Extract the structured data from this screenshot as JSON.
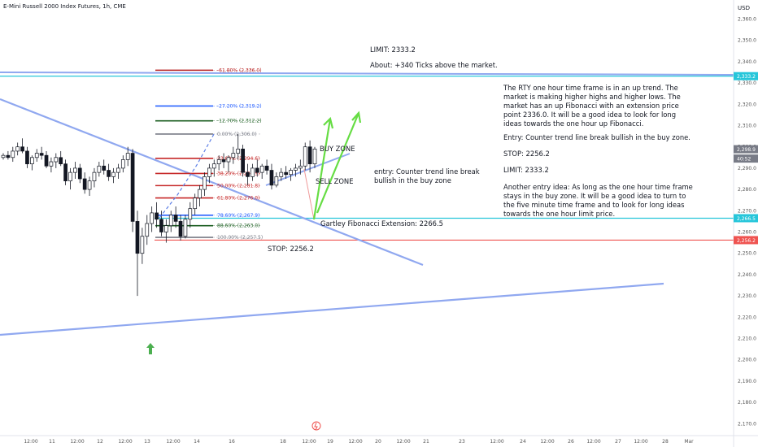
{
  "header": {
    "title": "E-Mini Russell 2000 Index Futures, 1h, CME",
    "currency": "USD"
  },
  "chart_data": {
    "type": "candlestick",
    "title": "E-Mini Russell 2000 Index Futures, 1h, CME",
    "ylim": [
      2165,
      2366
    ],
    "y_ticks": [
      "2,360.0",
      "2,350.0",
      "2,340.0",
      "2,330.0",
      "2,320.0",
      "2,310.0",
      "2,300.0",
      "2,290.0",
      "2,280.0",
      "2,270.0",
      "2,260.0",
      "2,250.0",
      "2,240.0",
      "2,230.0",
      "2,220.0",
      "2,210.0",
      "2,200.0",
      "2,190.0",
      "2,180.0",
      "2,170.0"
    ],
    "x_ticks": [
      "12:00",
      "11",
      "12:00",
      "12",
      "12:00",
      "13",
      "12:00",
      "14",
      "16",
      "18",
      "12:00",
      "19",
      "12:00",
      "20",
      "12:00",
      "21",
      "23",
      "12:00",
      "24",
      "12:00",
      "26",
      "12:00",
      "27",
      "12:00",
      "28",
      "Mar"
    ],
    "price_tags": [
      {
        "text": "2,333.2",
        "value": 2333.2,
        "color": "#26c6da"
      },
      {
        "text": "2,298.9",
        "value": 2298.9,
        "color": "#787b86"
      },
      {
        "text": "40:52",
        "value": 2294.5,
        "color": "#787b86"
      },
      {
        "text": "2,266.5",
        "value": 2266.5,
        "color": "#26c6da"
      },
      {
        "text": "2,256.2",
        "value": 2256.2,
        "color": "#ef5350"
      }
    ],
    "fib_levels": [
      {
        "label": "-61.80% (2,336.0)",
        "value": 2336.0,
        "color": "#b71c1c"
      },
      {
        "label": "-27.20% (2,319.2)",
        "value": 2319.2,
        "color": "#2962ff"
      },
      {
        "label": "-12.70% (2,312.2)",
        "value": 2312.2,
        "color": "#1b5e20"
      },
      {
        "label": "0.00% (2,306.0)",
        "value": 2306.0,
        "color": "#787b86"
      },
      {
        "label": "23.60% (2,294.6)",
        "value": 2294.6,
        "color": "#c62828"
      },
      {
        "label": "38.20% (2,287.5)",
        "value": 2287.5,
        "color": "#c62828"
      },
      {
        "label": "50.00% (2,281.8)",
        "value": 2281.8,
        "color": "#c62828"
      },
      {
        "label": "61.80% (2,276.0)",
        "value": 2276.0,
        "color": "#c62828"
      },
      {
        "label": "78.60% (2,267.9)",
        "value": 2267.9,
        "color": "#2962ff"
      },
      {
        "label": "88.60% (2,263.0)",
        "value": 2263.0,
        "color": "#1b5e20"
      },
      {
        "label": "100.00% (2,257.5)",
        "value": 2257.5,
        "color": "#787b86"
      }
    ],
    "horizontal_lines": [
      {
        "value": 2333.2,
        "color": "#26c6da"
      },
      {
        "value": 2266.5,
        "color": "#26c6da"
      },
      {
        "value": 2256.2,
        "color": "#ef5350"
      }
    ],
    "candles": [
      [
        2295,
        2297,
        2294,
        2296
      ],
      [
        2296,
        2298,
        2294,
        2295
      ],
      [
        2295,
        2300,
        2293,
        2298
      ],
      [
        2298,
        2302,
        2296,
        2300
      ],
      [
        2300,
        2304,
        2297,
        2298
      ],
      [
        2298,
        2300,
        2290,
        2292
      ],
      [
        2292,
        2296,
        2289,
        2295
      ],
      [
        2295,
        2299,
        2293,
        2297
      ],
      [
        2297,
        2300,
        2294,
        2296
      ],
      [
        2296,
        2298,
        2290,
        2291
      ],
      [
        2291,
        2295,
        2288,
        2293
      ],
      [
        2293,
        2297,
        2290,
        2295
      ],
      [
        2295,
        2298,
        2291,
        2292
      ],
      [
        2292,
        2294,
        2282,
        2284
      ],
      [
        2284,
        2290,
        2280,
        2288
      ],
      [
        2288,
        2293,
        2285,
        2290
      ],
      [
        2290,
        2292,
        2283,
        2285
      ],
      [
        2285,
        2288,
        2278,
        2280
      ],
      [
        2280,
        2286,
        2277,
        2284
      ],
      [
        2284,
        2290,
        2281,
        2288
      ],
      [
        2288,
        2293,
        2286,
        2291
      ],
      [
        2291,
        2294,
        2287,
        2289
      ],
      [
        2289,
        2292,
        2284,
        2286
      ],
      [
        2286,
        2290,
        2283,
        2288
      ],
      [
        2288,
        2292,
        2285,
        2290
      ],
      [
        2290,
        2296,
        2288,
        2294
      ],
      [
        2294,
        2300,
        2291,
        2297
      ],
      [
        2297,
        2299,
        2260,
        2265
      ],
      [
        2265,
        2270,
        2230,
        2250
      ],
      [
        2250,
        2262,
        2245,
        2258
      ],
      [
        2258,
        2268,
        2254,
        2264
      ],
      [
        2264,
        2272,
        2260,
        2269
      ],
      [
        2269,
        2274,
        2262,
        2266
      ],
      [
        2266,
        2270,
        2258,
        2260
      ],
      [
        2260,
        2266,
        2255,
        2263
      ],
      [
        2263,
        2270,
        2260,
        2268
      ],
      [
        2268,
        2272,
        2262,
        2265
      ],
      [
        2265,
        2268,
        2256,
        2258
      ],
      [
        2258,
        2268,
        2257,
        2266
      ],
      [
        2266,
        2274,
        2262,
        2271
      ],
      [
        2271,
        2278,
        2268,
        2276
      ],
      [
        2276,
        2282,
        2272,
        2280
      ],
      [
        2280,
        2288,
        2277,
        2286
      ],
      [
        2286,
        2292,
        2283,
        2290
      ],
      [
        2290,
        2294,
        2286,
        2292
      ],
      [
        2292,
        2296,
        2289,
        2294
      ],
      [
        2294,
        2297,
        2290,
        2293
      ],
      [
        2293,
        2296,
        2288,
        2295
      ],
      [
        2295,
        2300,
        2292,
        2297
      ],
      [
        2297,
        2306,
        2294,
        2299
      ],
      [
        2299,
        2301,
        2286,
        2288
      ],
      [
        2288,
        2292,
        2282,
        2286
      ],
      [
        2286,
        2292,
        2284,
        2290
      ],
      [
        2290,
        2294,
        2286,
        2288
      ],
      [
        2288,
        2292,
        2285,
        2291
      ],
      [
        2291,
        2294,
        2287,
        2289
      ],
      [
        2289,
        2292,
        2280,
        2282
      ],
      [
        2282,
        2288,
        2281,
        2286
      ],
      [
        2286,
        2290,
        2284,
        2288
      ],
      [
        2288,
        2291,
        2285,
        2287
      ],
      [
        2287,
        2290,
        2284,
        2289
      ],
      [
        2289,
        2292,
        2286,
        2290
      ],
      [
        2290,
        2294,
        2287,
        2291
      ],
      [
        2291,
        2302,
        2289,
        2300
      ],
      [
        2300,
        2303,
        2288,
        2292
      ],
      [
        2292,
        2300,
        2290,
        2299
      ]
    ]
  },
  "annotations": {
    "limit_top": "LIMIT: 2333.2",
    "about": "About: +340 Ticks above the market.",
    "right_para": "The RTY one hour time frame is in an up trend. The market is making higher highs and higher lows. The market has an up Fibonacci with an extension price point 2336.0.  It will be a good idea to look for long ideas towards the one hour up Fibonacci.",
    "right_entry": "Entry: Counter trend line break bullish in the buy zone.",
    "right_stop": "STOP: 2256.2",
    "right_limit": "LIMIT: 2333.2",
    "right_other": "Another entry idea: As long as the one hour time frame stays in the buy zone. It will be a good idea to turn to the five minute time frame and to look for long ideas towards the one hour limit price.",
    "entry_mid": "entry: Counter trend line break bullish in the buy zone",
    "buy_zone": "BUY ZONE",
    "sell_zone": "SELL ZONE",
    "gartley": "Gartley Fibonacci Extension: 2266.5",
    "stop_low": "STOP: 2256.2"
  },
  "colors": {
    "up": "#26a69a",
    "down": "#ef5350",
    "candle": "#131722",
    "trendline": "#90a8f0",
    "arrow": "#66dd44"
  },
  "icons": {
    "buy_marker": "up-arrow-icon",
    "event": "lightning-icon"
  }
}
